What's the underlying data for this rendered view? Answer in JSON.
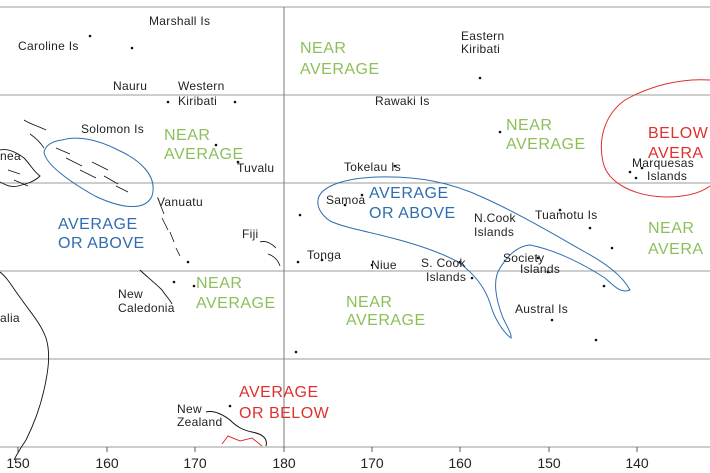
{
  "colors": {
    "near_average": "#8cbf5a",
    "average_or_above": "#2f6db0",
    "below": "#e0302e",
    "grid": "#7a7a7a",
    "land": "#111111",
    "text": "#222222"
  },
  "places": {
    "marshall": "Marshall Is",
    "caroline": "Caroline Is",
    "eastern_kiribati_1": "Eastern",
    "eastern_kiribati_2": "Kiribati",
    "nauru": "Nauru",
    "western_kiribati_1": "Western",
    "western_kiribati_2": "Kiribati",
    "rawaki": "Rawaki Is",
    "solomon": "Solomon Is",
    "png_fragment": "nea",
    "tuvalu": "Tuvalu",
    "tokelau": "Tokelau Is",
    "marquesas_1": "Marquesas",
    "marquesas_2": "Islands",
    "samoa": "Samoa",
    "vanuatu": "Vanuatu",
    "ncook_1": "N.Cook",
    "ncook_2": "Islands",
    "tuamotu": "Tuamotu Is",
    "fiji": "Fiji",
    "tonga": "Tonga",
    "niue": "Niue",
    "scook_1": "S. Cook",
    "scook_2": "Islands",
    "society_1": "Society",
    "society_2": "Islands",
    "new_caledonia_1": "New",
    "new_caledonia_2": "Caledonia",
    "australia_fragment": "alia",
    "austral": "Austral Is",
    "new_zealand_1": "New",
    "new_zealand_2": "Zealand"
  },
  "zones": {
    "near_avg_top_1": "NEAR",
    "near_avg_top_2": "AVERAGE",
    "near_avg_w_1": "NEAR",
    "near_avg_w_2": "AVERAGE",
    "near_avg_e_1": "NEAR",
    "near_avg_e_2": "AVERAGE",
    "below_avg_1": "BELOW",
    "below_avg_2": "AVERA",
    "avg_above_c_1": "AVERAGE",
    "avg_above_c_2": "OR ABOVE",
    "avg_above_w_1": "AVERAGE",
    "avg_above_w_2": "OR ABOVE",
    "near_avg_fiji_1": "NEAR",
    "near_avg_fiji_2": "AVERAGE",
    "near_avg_s_1": "NEAR",
    "near_avg_s_2": "AVERAGE",
    "near_avg_far_e_1": "NEAR",
    "near_avg_far_e_2": "AVERA",
    "avg_below_1": "AVERAGE",
    "avg_below_2": "OR BELOW"
  },
  "axis": {
    "ticks": [
      "150",
      "160",
      "170",
      "180",
      "170",
      "160",
      "150",
      "140"
    ]
  }
}
